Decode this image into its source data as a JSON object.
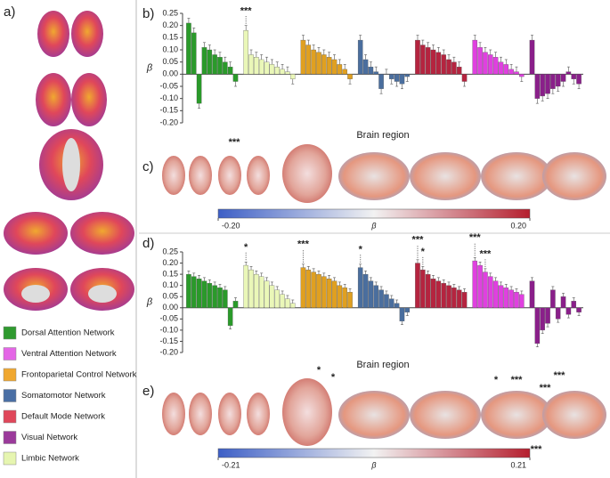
{
  "panels": {
    "a": "a)",
    "b": "b)",
    "c": "c)",
    "d": "d)",
    "e": "e)"
  },
  "legend": [
    {
      "name": "Dorsal Attention Network",
      "color": "#2f9a2f"
    },
    {
      "name": "Ventral Attention Network",
      "color": "#e466e6"
    },
    {
      "name": "Frontoparietal Control Network",
      "color": "#f0a830"
    },
    {
      "name": "Somatomotor Network",
      "color": "#4a6fa5"
    },
    {
      "name": "Default Mode Network",
      "color": "#e0475a"
    },
    {
      "name": "Visual Network",
      "color": "#9b3a9b"
    },
    {
      "name": "Limbic Network",
      "color": "#e6f5b0"
    }
  ],
  "chart_data": [
    {
      "type": "bar",
      "ylabel": "β",
      "xlabel": "Brain region",
      "ylim": [
        -0.2,
        0.25
      ],
      "yticks": [
        0.25,
        {
          "value": 0.2,
          "label": "0.20"
        },
        0.15,
        {
          "value": 0.1,
          "label": "0.10"
        },
        0.05,
        {
          "value": 0,
          "label": "0.00"
        },
        -0.05,
        {
          "value": -0.1,
          "label": "-0.10"
        },
        -0.15,
        {
          "value": -0.2,
          "label": "-0.20"
        }
      ],
      "series": [
        {
          "color": "#2a9a2a",
          "error": 0.02,
          "values": [
            0.21,
            0.17,
            -0.12,
            0.11,
            0.1,
            0.08,
            0.07,
            0.05,
            0.03,
            -0.03
          ]
        },
        {
          "color": "#eaf7b8",
          "error": 0.02,
          "values": [
            0.18,
            0.08,
            0.07,
            0.06,
            0.05,
            0.04,
            0.03,
            0.02,
            0.01,
            -0.02
          ]
        },
        {
          "color": "#e0a020",
          "error": 0.02,
          "values": [
            0.14,
            0.12,
            0.1,
            0.09,
            0.08,
            0.07,
            0.06,
            0.04,
            0.02,
            -0.02
          ]
        },
        {
          "color": "#4a6e9e",
          "error": 0.02,
          "values": [
            0.14,
            0.06,
            0.03,
            0.01,
            -0.06,
            0,
            -0.02,
            -0.03,
            -0.04,
            -0.01
          ]
        },
        {
          "color": "#b5243f",
          "error": 0.02,
          "values": [
            0.14,
            0.12,
            0.11,
            0.1,
            0.09,
            0.08,
            0.06,
            0.05,
            0.03,
            -0.03
          ]
        },
        {
          "color": "#e040e0",
          "error": 0.02,
          "values": [
            0.14,
            0.11,
            0.09,
            0.08,
            0.07,
            0.05,
            0.04,
            0.02,
            0.01,
            -0.01
          ]
        },
        {
          "color": "#8a1f8a",
          "error": 0.02,
          "values": [
            0.14,
            -0.1,
            -0.09,
            -0.08,
            -0.06,
            -0.05,
            -0.03,
            0.01,
            -0.02,
            -0.04
          ]
        }
      ],
      "annotations": [
        {
          "text": "***",
          "series": 1,
          "index": 0
        }
      ]
    },
    {
      "type": "bar",
      "ylabel": "β",
      "xlabel": "Brain region",
      "ylim": [
        -0.2,
        0.25
      ],
      "yticks": [
        0.25,
        {
          "value": 0.2,
          "label": "0.20"
        },
        0.15,
        {
          "value": 0.1,
          "label": "0.10"
        },
        0.05,
        {
          "value": 0,
          "label": "0.00"
        },
        -0.05,
        {
          "value": -0.1,
          "label": "-0.10"
        },
        -0.15,
        {
          "value": -0.2,
          "label": "-0.20"
        }
      ],
      "series": [
        {
          "color": "#2a9a2a",
          "error": 0.015,
          "values": [
            0.15,
            0.14,
            0.13,
            0.12,
            0.11,
            0.1,
            0.09,
            0.08,
            -0.08,
            0.03
          ]
        },
        {
          "color": "#eaf7b8",
          "error": 0.015,
          "values": [
            0.19,
            0.17,
            0.15,
            0.14,
            0.12,
            0.1,
            0.08,
            0.06,
            0.04,
            0.02
          ]
        },
        {
          "color": "#e0a020",
          "error": 0.015,
          "values": [
            0.18,
            0.17,
            0.16,
            0.15,
            0.14,
            0.13,
            0.12,
            0.1,
            0.09,
            0.07
          ]
        },
        {
          "color": "#4a6e9e",
          "error": 0.015,
          "values": [
            0.18,
            0.15,
            0.12,
            0.1,
            0.08,
            0.06,
            0.04,
            0.02,
            -0.06,
            -0.02
          ]
        },
        {
          "color": "#b5243f",
          "error": 0.015,
          "values": [
            0.2,
            0.17,
            0.15,
            0.13,
            0.12,
            0.11,
            0.1,
            0.09,
            0.08,
            0.07
          ]
        },
        {
          "color": "#e040e0",
          "error": 0.015,
          "values": [
            0.21,
            0.19,
            0.16,
            0.14,
            0.12,
            0.1,
            0.09,
            0.08,
            0.07,
            0.06
          ]
        },
        {
          "color": "#8a1f8a",
          "error": 0.015,
          "values": [
            0.12,
            -0.16,
            -0.1,
            -0.07,
            0.08,
            -0.05,
            0.05,
            -0.03,
            0.03,
            -0.02
          ]
        }
      ],
      "annotations": [
        {
          "text": "*",
          "series": 1,
          "index": 0
        },
        {
          "text": "***",
          "series": 2,
          "index": 0
        },
        {
          "text": "*",
          "series": 3,
          "index": 0
        },
        {
          "text": "***",
          "series": 4,
          "index": 0
        },
        {
          "text": "*",
          "series": 4,
          "index": 1
        },
        {
          "text": "***",
          "series": 5,
          "index": 0
        },
        {
          "text": "***",
          "series": 5,
          "index": 2
        }
      ]
    }
  ],
  "brain_maps": [
    {
      "stars": [
        "***"
      ],
      "colors": [
        "#3d5fc6",
        "#f2f2f2",
        "#b51f2e"
      ],
      "colorbar": {
        "min": {
          "value": -0.2,
          "label": "-0.20"
        },
        "symbol": "β",
        "max": {
          "value": 0.2,
          "label": "0.20"
        }
      }
    },
    {
      "stars": [
        "*",
        "*",
        "*",
        "***",
        "***",
        "***",
        "***"
      ],
      "colors": [
        "#3d5fc6",
        "#f2f2f2",
        "#b51f2e"
      ],
      "colorbar": {
        "min": {
          "value": -0.21,
          "label": "-0.21"
        },
        "symbol": "β",
        "max": {
          "value": 0.21,
          "label": "0.21"
        }
      }
    }
  ]
}
